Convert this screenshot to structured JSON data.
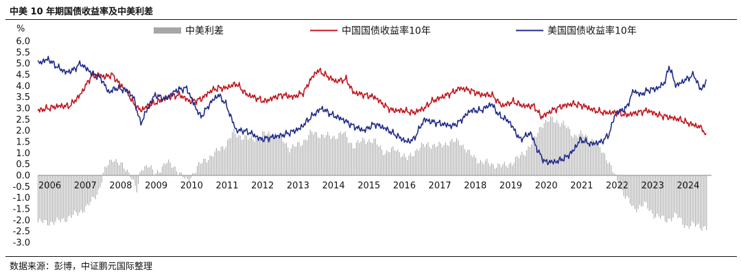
{
  "header": {
    "title": "中美 10 年期国债收益率及中美利差"
  },
  "footer": {
    "source": "数据来源：彭博，中证鹏元国际整理"
  },
  "chart_data": {
    "type": "line",
    "ylabel": "%",
    "ylim": [
      -3.0,
      6.0
    ],
    "yticks": [
      "6.0",
      "5.5",
      "5.0",
      "4.5",
      "4.0",
      "3.5",
      "3.0",
      "2.5",
      "2.0",
      "1.5",
      "1.0",
      "0.5",
      "0.0",
      "-0.5",
      "-1.0",
      "-1.5",
      "-2.0",
      "-2.5",
      "-3.0"
    ],
    "xlim": [
      2006.0,
      2025.0
    ],
    "xticks": [
      "2006",
      "2007",
      "2008",
      "2009",
      "2010",
      "2011",
      "2012",
      "2013",
      "2014",
      "2015",
      "2016",
      "2017",
      "2018",
      "2019",
      "2020",
      "2021",
      "2022",
      "2023",
      "2024"
    ],
    "legend_position": "top",
    "series": [
      {
        "name": "中美利差",
        "kind": "bar",
        "color": "#a6a6a6",
        "x": [
          2006.0,
          2006.5,
          2007.0,
          2007.4,
          2007.7,
          2007.9,
          2008.1,
          2008.3,
          2008.6,
          2008.8,
          2008.9,
          2009.1,
          2009.3,
          2009.6,
          2009.9,
          2010.2,
          2010.5,
          2010.8,
          2011.0,
          2011.3,
          2011.5,
          2011.8,
          2012.0,
          2012.3,
          2012.6,
          2012.9,
          2013.1,
          2013.4,
          2013.7,
          2014.0,
          2014.3,
          2014.6,
          2014.9,
          2015.2,
          2015.5,
          2015.8,
          2016.1,
          2016.4,
          2016.7,
          2017.0,
          2017.3,
          2017.6,
          2017.9,
          2018.2,
          2018.5,
          2018.8,
          2019.1,
          2019.4,
          2019.7,
          2020.0,
          2020.2,
          2020.5,
          2020.8,
          2021.1,
          2021.4,
          2021.7,
          2022.0,
          2022.2,
          2022.5,
          2022.8,
          2023.1,
          2023.4,
          2023.7,
          2024.0,
          2024.3,
          2024.6,
          2024.85
        ],
        "values": [
          -2.1,
          -2.1,
          -1.8,
          -1.4,
          -0.7,
          0.3,
          0.8,
          0.5,
          0.1,
          -0.8,
          0.3,
          0.5,
          0.0,
          0.6,
          0.3,
          -0.3,
          0.4,
          0.8,
          1.0,
          1.4,
          1.9,
          1.7,
          1.6,
          1.8,
          1.9,
          1.6,
          1.2,
          1.4,
          1.9,
          1.8,
          1.7,
          1.9,
          1.3,
          1.6,
          1.5,
          1.0,
          1.2,
          0.7,
          1.2,
          1.4,
          1.3,
          1.5,
          1.5,
          0.9,
          0.6,
          0.5,
          0.4,
          0.6,
          1.0,
          1.6,
          2.3,
          2.5,
          2.3,
          1.8,
          1.8,
          1.5,
          0.9,
          0.2,
          -0.8,
          -1.5,
          -1.3,
          -1.8,
          -2.0,
          -1.8,
          -2.3,
          -2.2,
          -2.4
        ]
      },
      {
        "name": "中国国债收益率10年",
        "kind": "line",
        "color": "#c0141c",
        "x": [
          2006.0,
          2006.3,
          2006.6,
          2006.9,
          2007.2,
          2007.5,
          2007.7,
          2007.9,
          2008.1,
          2008.3,
          2008.5,
          2008.7,
          2008.9,
          2009.1,
          2009.4,
          2009.7,
          2010.0,
          2010.3,
          2010.6,
          2010.9,
          2011.1,
          2011.3,
          2011.6,
          2011.9,
          2012.1,
          2012.4,
          2012.7,
          2012.9,
          2013.2,
          2013.5,
          2013.7,
          2013.9,
          2014.1,
          2014.4,
          2014.7,
          2014.9,
          2015.2,
          2015.5,
          2015.8,
          2016.0,
          2016.3,
          2016.6,
          2016.9,
          2017.1,
          2017.4,
          2017.7,
          2017.9,
          2018.2,
          2018.5,
          2018.8,
          2019.1,
          2019.4,
          2019.7,
          2020.0,
          2020.2,
          2020.5,
          2020.8,
          2021.1,
          2021.4,
          2021.7,
          2022.0,
          2022.3,
          2022.6,
          2022.9,
          2023.2,
          2023.5,
          2023.8,
          2024.1,
          2024.4,
          2024.6,
          2024.75,
          2024.85
        ],
        "values": [
          2.9,
          3.0,
          3.1,
          3.1,
          3.6,
          4.4,
          4.5,
          4.4,
          4.5,
          4.1,
          3.8,
          3.2,
          2.9,
          3.1,
          3.3,
          3.5,
          3.6,
          3.3,
          3.4,
          3.8,
          3.9,
          3.9,
          4.1,
          3.6,
          3.5,
          3.3,
          3.5,
          3.6,
          3.5,
          3.7,
          4.3,
          4.7,
          4.5,
          4.2,
          4.3,
          3.7,
          3.6,
          3.5,
          3.1,
          2.9,
          2.9,
          2.8,
          3.0,
          3.3,
          3.5,
          3.7,
          3.9,
          3.8,
          3.6,
          3.6,
          3.1,
          3.3,
          3.1,
          3.1,
          2.6,
          2.9,
          3.1,
          3.2,
          3.1,
          2.9,
          2.8,
          2.8,
          2.7,
          2.8,
          2.9,
          2.7,
          2.6,
          2.5,
          2.3,
          2.2,
          2.1,
          1.7
        ]
      },
      {
        "name": "美国国债收益率10年",
        "kind": "line",
        "color": "#1f2a8a",
        "x": [
          2006.0,
          2006.3,
          2006.5,
          2006.8,
          2007.0,
          2007.2,
          2007.5,
          2007.8,
          2008.0,
          2008.2,
          2008.5,
          2008.7,
          2008.9,
          2009.1,
          2009.3,
          2009.6,
          2009.9,
          2010.2,
          2010.4,
          2010.6,
          2010.9,
          2011.1,
          2011.3,
          2011.6,
          2011.8,
          2012.0,
          2012.3,
          2012.6,
          2012.9,
          2013.1,
          2013.4,
          2013.7,
          2014.0,
          2014.3,
          2014.6,
          2014.9,
          2015.2,
          2015.5,
          2015.8,
          2016.1,
          2016.4,
          2016.6,
          2016.9,
          2017.1,
          2017.4,
          2017.7,
          2017.9,
          2018.2,
          2018.5,
          2018.8,
          2019.0,
          2019.3,
          2019.6,
          2019.9,
          2020.1,
          2020.3,
          2020.6,
          2020.9,
          2021.1,
          2021.3,
          2021.6,
          2021.9,
          2022.1,
          2022.3,
          2022.6,
          2022.8,
          2023.0,
          2023.2,
          2023.5,
          2023.7,
          2023.8,
          2024.0,
          2024.3,
          2024.5,
          2024.7,
          2024.85
        ],
        "values": [
          5.0,
          5.2,
          4.9,
          4.6,
          4.7,
          5.0,
          4.6,
          4.3,
          3.7,
          3.9,
          3.8,
          3.5,
          2.3,
          3.0,
          3.6,
          3.4,
          3.8,
          3.9,
          3.2,
          2.6,
          3.3,
          3.6,
          3.2,
          2.0,
          2.0,
          1.9,
          1.6,
          1.7,
          1.8,
          1.9,
          2.1,
          2.6,
          3.0,
          2.7,
          2.5,
          2.2,
          2.0,
          2.3,
          2.1,
          1.8,
          1.5,
          1.6,
          2.5,
          2.4,
          2.3,
          2.2,
          2.4,
          2.9,
          2.9,
          3.2,
          2.7,
          2.4,
          1.6,
          1.9,
          1.1,
          0.6,
          0.6,
          0.8,
          1.1,
          1.6,
          1.4,
          1.5,
          1.8,
          2.8,
          3.0,
          3.8,
          3.6,
          3.8,
          3.9,
          4.2,
          4.9,
          4.0,
          4.3,
          4.5,
          3.8,
          4.2
        ]
      }
    ]
  }
}
